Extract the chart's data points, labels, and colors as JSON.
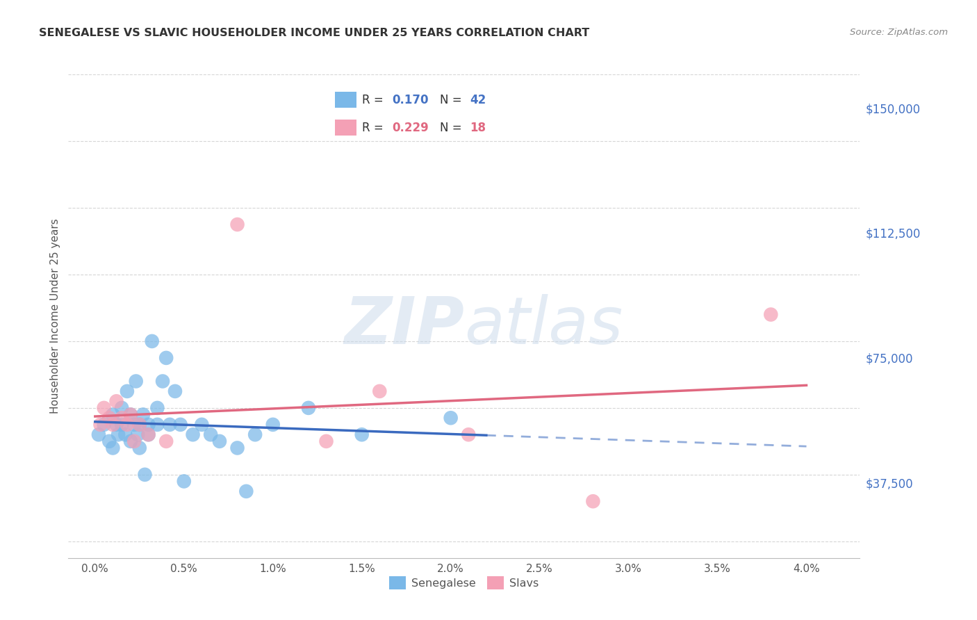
{
  "title": "SENEGALESE VS SLAVIC HOUSEHOLDER INCOME UNDER 25 YEARS CORRELATION CHART",
  "source": "Source: ZipAtlas.com",
  "xlabel_ticks": [
    "0.0%",
    "0.5%",
    "1.0%",
    "1.5%",
    "2.0%",
    "2.5%",
    "3.0%",
    "3.5%",
    "4.0%"
  ],
  "xlabel_vals": [
    0.0,
    0.005,
    0.01,
    0.015,
    0.02,
    0.025,
    0.03,
    0.035,
    0.04
  ],
  "ylabel": "Householder Income Under 25 years",
  "ytick_labels": [
    "$37,500",
    "$75,000",
    "$112,500",
    "$150,000"
  ],
  "ytick_vals": [
    37500,
    75000,
    112500,
    150000
  ],
  "ymin": 15000,
  "ymax": 160000,
  "xmin": -0.0015,
  "xmax": 0.043,
  "watermark_line1": "ZIP",
  "watermark_line2": "atlas",
  "senegalese_x": [
    0.0002,
    0.0005,
    0.0008,
    0.001,
    0.001,
    0.0012,
    0.0013,
    0.0015,
    0.0015,
    0.0017,
    0.0018,
    0.002,
    0.002,
    0.0022,
    0.0023,
    0.0024,
    0.0025,
    0.0025,
    0.0027,
    0.0028,
    0.003,
    0.003,
    0.0032,
    0.0035,
    0.0035,
    0.0038,
    0.004,
    0.0042,
    0.0045,
    0.0048,
    0.005,
    0.0055,
    0.006,
    0.0065,
    0.007,
    0.008,
    0.0085,
    0.009,
    0.01,
    0.012,
    0.015,
    0.02
  ],
  "senegalese_y": [
    52000,
    55000,
    50000,
    48000,
    58000,
    55000,
    52000,
    60000,
    55000,
    52000,
    65000,
    58000,
    50000,
    55000,
    68000,
    52000,
    55000,
    48000,
    58000,
    40000,
    55000,
    52000,
    80000,
    55000,
    60000,
    68000,
    75000,
    55000,
    65000,
    55000,
    38000,
    52000,
    55000,
    52000,
    50000,
    48000,
    35000,
    52000,
    55000,
    60000,
    52000,
    57000
  ],
  "slavic_x": [
    0.0003,
    0.0005,
    0.0008,
    0.001,
    0.0012,
    0.0015,
    0.0018,
    0.002,
    0.0022,
    0.0025,
    0.003,
    0.004,
    0.008,
    0.013,
    0.016,
    0.021,
    0.028,
    0.038
  ],
  "slavic_y": [
    55000,
    60000,
    57000,
    55000,
    62000,
    57000,
    55000,
    58000,
    50000,
    55000,
    52000,
    50000,
    115000,
    50000,
    65000,
    52000,
    32000,
    88000
  ],
  "senegalese_color": "#7ab8e8",
  "slavic_color": "#f4a0b5",
  "trend_blue_color": "#3a6abf",
  "trend_pink_color": "#e06880",
  "background_color": "#ffffff",
  "grid_color": "#cccccc",
  "title_color": "#333333",
  "axis_label_color": "#555555",
  "ytick_color": "#4472c4",
  "xtick_color": "#555555",
  "legend_r1_color": "#4472c4",
  "legend_r2_color": "#e06880"
}
